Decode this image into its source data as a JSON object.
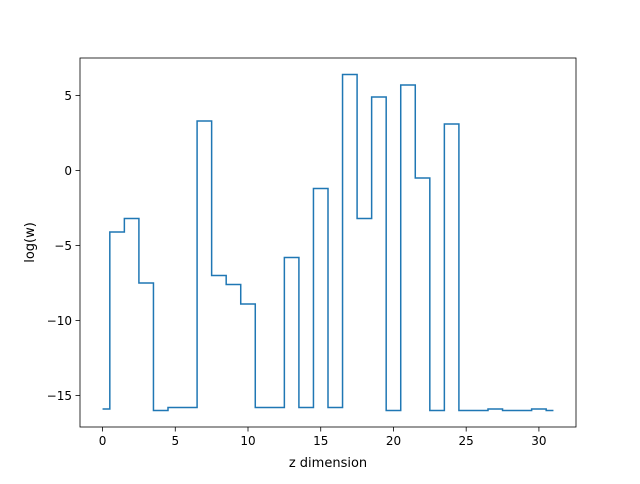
{
  "chart_data": {
    "type": "line",
    "drawstyle": "steps-mid",
    "title": "",
    "xlabel": "z dimension",
    "ylabel": "log(w)",
    "xlim": [
      -1.55,
      32.55
    ],
    "ylim": [
      -17.1,
      7.5
    ],
    "xticks": [
      0,
      5,
      10,
      15,
      20,
      25,
      30
    ],
    "yticks": [
      -15,
      -10,
      -5,
      0,
      5
    ],
    "grid": false,
    "series": [
      {
        "color": "#1f77b4",
        "x": [
          0,
          1,
          2,
          3,
          4,
          5,
          6,
          7,
          8,
          9,
          10,
          11,
          12,
          13,
          14,
          15,
          16,
          17,
          18,
          19,
          20,
          21,
          22,
          23,
          24,
          25,
          26,
          27,
          28,
          29,
          30,
          31
        ],
        "values": [
          -15.9,
          -4.1,
          -3.2,
          -7.5,
          -16.0,
          -15.8,
          -15.8,
          3.3,
          -7.0,
          -7.6,
          -8.9,
          -15.8,
          -15.8,
          -5.8,
          -15.8,
          -1.2,
          -15.8,
          6.4,
          -3.2,
          4.9,
          -16.0,
          5.7,
          -0.5,
          -16.0,
          3.1,
          -16.0,
          -16.0,
          -15.9,
          -16.0,
          -16.0,
          -15.9,
          -16.0
        ]
      }
    ]
  }
}
